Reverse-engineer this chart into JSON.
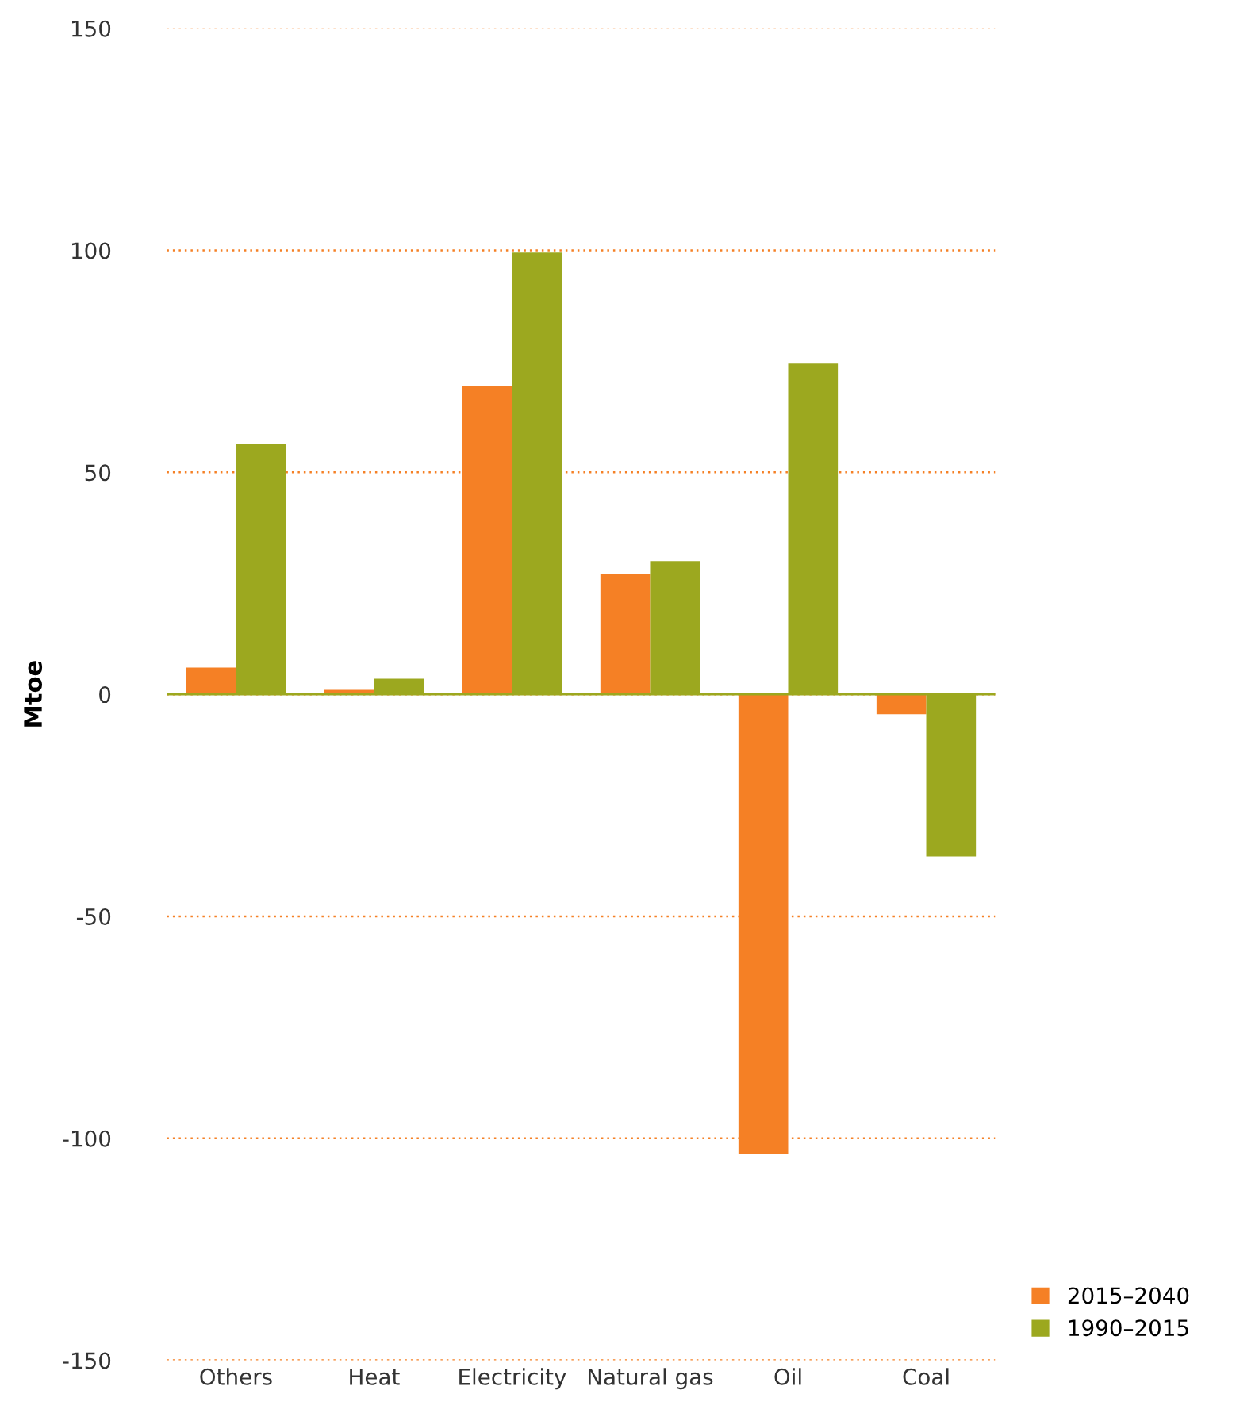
{
  "chart_data": {
    "type": "bar",
    "ylabel": "Mtoe",
    "categories": [
      "Others",
      "Heat",
      "Electricity",
      "Natural gas",
      "Oil",
      "Coal"
    ],
    "series": [
      {
        "name": "2015–2040",
        "color": "#f58025",
        "values": [
          6,
          1,
          69.5,
          27,
          -103.5,
          -4.5
        ]
      },
      {
        "name": "1990–2015",
        "color": "#9ca81f",
        "values": [
          56.5,
          3.5,
          99.5,
          30,
          74.5,
          -36.5
        ]
      }
    ],
    "ylim": [
      -150,
      150
    ],
    "yticks": [
      -150,
      -100,
      -50,
      0,
      50,
      100,
      150
    ],
    "ref_lines": [
      {
        "axis": "y",
        "value": 0,
        "label": null,
        "color": "#9ca81f"
      }
    ],
    "grid": "y",
    "legend": "bottom right"
  }
}
